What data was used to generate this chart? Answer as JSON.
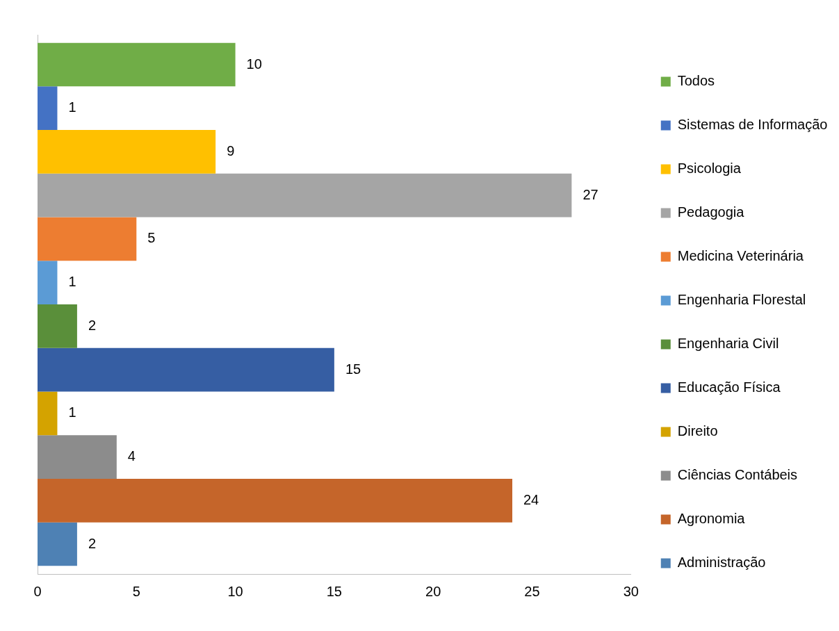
{
  "chart_data": {
    "type": "bar",
    "orientation": "horizontal",
    "categories": [
      null
    ],
    "series": [
      {
        "name": "Todos",
        "color": "#70ad47",
        "values": [
          10
        ]
      },
      {
        "name": "Sistemas de Informação",
        "color": "#4472c4",
        "values": [
          1
        ]
      },
      {
        "name": "Psicologia",
        "color": "#ffc000",
        "values": [
          9
        ]
      },
      {
        "name": "Pedagogia",
        "color": "#a5a5a5",
        "values": [
          27
        ]
      },
      {
        "name": "Medicina Veterinária",
        "color": "#ed7d31",
        "values": [
          5
        ]
      },
      {
        "name": "Engenharia Florestal",
        "color": "#5b9bd5",
        "values": [
          1
        ]
      },
      {
        "name": "Engenharia Civil",
        "color": "#5a8f3a",
        "values": [
          2
        ]
      },
      {
        "name": "Educação Física",
        "color": "#365ea3",
        "values": [
          15
        ]
      },
      {
        "name": "Direito",
        "color": "#d4a300",
        "values": [
          1
        ]
      },
      {
        "name": "Ciências Contábeis",
        "color": "#8c8c8c",
        "values": [
          4
        ]
      },
      {
        "name": "Agronomia",
        "color": "#c5652a",
        "values": [
          24
        ]
      },
      {
        "name": "Administração",
        "color": "#4e81b4",
        "values": [
          2
        ]
      }
    ],
    "xlim": [
      0,
      30
    ],
    "xticks": [
      0,
      5,
      10,
      15,
      20,
      25,
      30
    ],
    "grid": false,
    "legend": "right",
    "data_labels": true
  }
}
